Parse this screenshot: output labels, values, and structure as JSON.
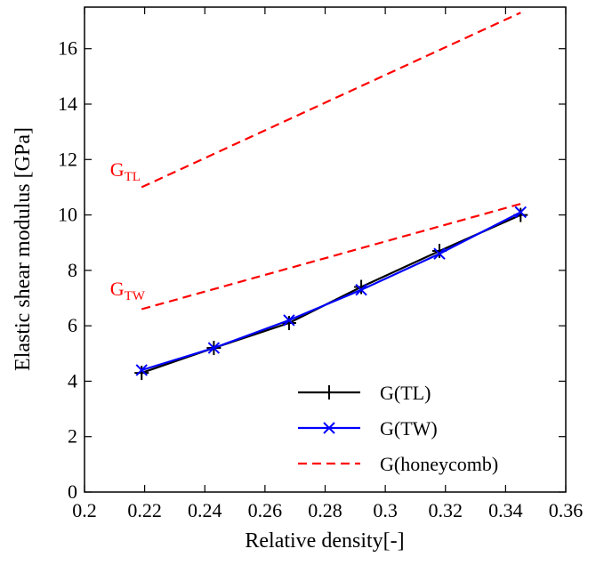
{
  "chart_data": {
    "type": "line",
    "xlabel": "Relative density[-]",
    "ylabel": "Elastic shear modulus [GPa]",
    "xlim": [
      0.2,
      0.36
    ],
    "ylim": [
      0,
      17.5
    ],
    "x_ticks": [
      "0.2",
      "0.22",
      "0.24",
      "0.26",
      "0.28",
      "0.3",
      "0.32",
      "0.34",
      "0.36"
    ],
    "y_ticks": [
      "0",
      "2",
      "4",
      "6",
      "8",
      "10",
      "12",
      "14",
      "16"
    ],
    "x_tick_values": [
      0.2,
      0.22,
      0.24,
      0.26,
      0.28,
      0.3,
      0.32,
      0.34,
      0.36
    ],
    "y_tick_values": [
      0,
      2,
      4,
      6,
      8,
      10,
      12,
      14,
      16
    ],
    "grid": false,
    "legend_position": "bottom-right",
    "series": [
      {
        "name": "G(TL)",
        "color": "#000000",
        "marker": "plus",
        "line_style": "solid",
        "x": [
          0.219,
          0.243,
          0.268,
          0.292,
          0.318,
          0.345
        ],
        "y": [
          4.3,
          5.2,
          6.1,
          7.4,
          8.7,
          10.0
        ]
      },
      {
        "name": "G(TW)",
        "color": "#0000ff",
        "marker": "x",
        "line_style": "solid",
        "x": [
          0.219,
          0.243,
          0.268,
          0.292,
          0.318,
          0.345
        ],
        "y": [
          4.4,
          5.2,
          6.2,
          7.3,
          8.6,
          10.1
        ]
      },
      {
        "name": "G(honeycomb)",
        "color": "#ff0000",
        "marker": "none",
        "line_style": "dashed",
        "x": [
          0.219,
          0.345
        ],
        "y": [
          11.0,
          17.3
        ]
      },
      {
        "name": "",
        "color": "#ff0000",
        "marker": "none",
        "line_style": "dashed",
        "x": [
          0.219,
          0.345
        ],
        "y": [
          6.6,
          10.4
        ]
      }
    ],
    "annotations": [
      {
        "main": "G",
        "sub": "TL",
        "x": 0.2085,
        "y": 11.4,
        "color": "#ff0000"
      },
      {
        "main": "G",
        "sub": "TW",
        "x": 0.2085,
        "y": 7.1,
        "color": "#ff0000"
      }
    ]
  }
}
